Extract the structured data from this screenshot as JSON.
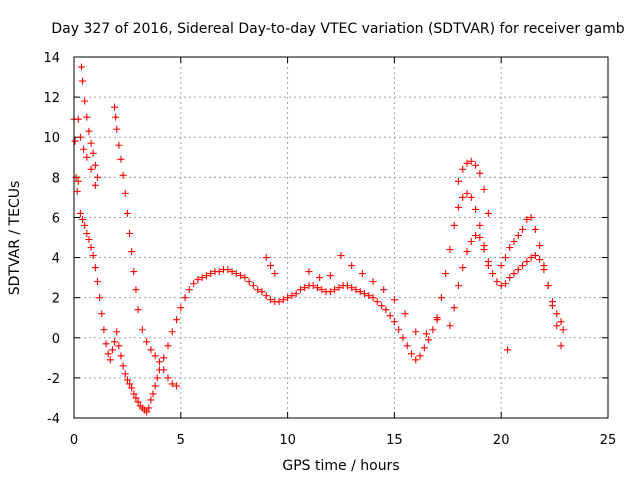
{
  "chart_data": {
    "type": "scatter",
    "title": "Day 327 of 2016, Sidereal Day-to-day VTEC variation (SDTVAR) for receiver gamb",
    "xlabel": "GPS time / hours",
    "ylabel": "SDTVAR / TECUs",
    "xlim": [
      0,
      25
    ],
    "ylim": [
      -4,
      14
    ],
    "xticks": [
      0,
      5,
      10,
      15,
      20,
      25
    ],
    "yticks": [
      -4,
      -2,
      0,
      2,
      4,
      6,
      8,
      10,
      12,
      14
    ],
    "grid": true,
    "marker": "plus",
    "color": "#ff0000",
    "series": [
      {
        "name": "SDTVAR",
        "x": [
          0.0,
          0.05,
          0.1,
          0.15,
          0.2,
          0.3,
          0.4,
          0.5,
          0.6,
          0.7,
          0.8,
          0.9,
          1.0,
          1.1,
          1.2,
          1.3,
          1.4,
          1.5,
          1.6,
          1.7,
          1.8,
          1.9,
          2.0,
          2.1,
          2.2,
          2.3,
          2.4,
          2.5,
          2.6,
          2.7,
          2.8,
          2.9,
          3.0,
          3.1,
          3.2,
          3.3,
          3.4,
          3.5,
          3.6,
          3.7,
          3.8,
          3.9,
          4.0,
          4.2,
          4.4,
          4.6,
          4.8,
          5.0,
          5.2,
          5.4,
          5.6,
          5.8,
          6.0,
          6.2,
          6.4,
          6.6,
          6.8,
          7.0,
          7.2,
          7.4,
          7.6,
          7.8,
          8.0,
          8.2,
          8.4,
          8.6,
          8.8,
          9.0,
          9.2,
          9.4,
          9.6,
          9.8,
          10.0,
          10.2,
          10.4,
          10.6,
          10.8,
          11.0,
          11.2,
          11.4,
          11.6,
          11.8,
          12.0,
          12.2,
          12.4,
          12.6,
          12.8,
          13.0,
          13.2,
          13.4,
          13.6,
          13.8,
          14.0,
          14.2,
          14.4,
          14.6,
          14.8,
          15.0,
          15.2,
          15.4,
          15.6,
          15.8,
          16.0,
          16.2,
          16.4,
          16.6,
          16.8,
          17.0,
          17.2,
          17.4,
          17.6,
          17.8,
          18.0,
          18.2,
          18.4,
          18.6,
          18.8,
          19.0,
          19.2,
          19.4,
          19.6,
          19.8,
          20.0,
          20.2,
          20.4,
          20.6,
          20.8,
          21.0,
          21.2,
          21.4,
          21.6,
          21.8,
          22.0,
          22.2,
          22.4,
          22.6,
          22.8,
          22.9,
          0.35,
          0.4,
          0.5,
          0.6,
          0.7,
          0.8,
          0.9,
          1.0,
          1.1,
          0.2,
          0.3,
          0.45,
          0.6,
          0.8,
          1.0,
          1.9,
          1.95,
          2.0,
          2.1,
          2.2,
          2.3,
          2.4,
          2.5,
          2.6,
          2.7,
          2.8,
          2.9,
          3.0,
          3.2,
          3.4,
          3.6,
          3.8,
          4.0,
          4.2,
          4.4,
          4.6,
          4.8,
          18.0,
          18.2,
          18.4,
          18.6,
          18.8,
          19.0,
          19.2,
          19.4,
          20.0,
          20.2,
          20.4,
          20.6,
          20.8,
          21.0,
          21.2,
          21.4,
          21.6,
          21.8,
          22.0,
          22.2,
          22.4,
          22.6,
          22.8,
          17.6,
          17.8,
          18.0,
          18.2,
          18.4,
          18.6,
          18.8,
          19.0,
          19.2,
          19.4,
          20.3,
          11.0,
          11.5,
          12.0,
          12.5,
          13.0,
          13.5,
          14.0,
          14.5,
          15.0,
          15.5,
          16.0,
          16.5,
          17.0,
          9.0,
          9.2,
          9.4
        ],
        "y": [
          10.9,
          9.8,
          8.0,
          7.3,
          7.8,
          6.2,
          5.9,
          5.6,
          5.2,
          4.9,
          4.5,
          4.1,
          3.5,
          2.8,
          2.0,
          1.2,
          0.4,
          -0.3,
          -0.8,
          -1.1,
          -0.6,
          -0.2,
          0.3,
          -0.4,
          -0.9,
          -1.4,
          -1.8,
          -2.1,
          -2.3,
          -2.5,
          -2.8,
          -3.0,
          -3.2,
          -3.4,
          -3.5,
          -3.6,
          -3.7,
          -3.5,
          -3.1,
          -2.8,
          -2.4,
          -2.0,
          -1.6,
          -1.0,
          -0.4,
          0.3,
          0.9,
          1.5,
          2.0,
          2.4,
          2.7,
          2.9,
          3.0,
          3.1,
          3.2,
          3.3,
          3.3,
          3.4,
          3.4,
          3.3,
          3.2,
          3.1,
          3.0,
          2.8,
          2.6,
          2.4,
          2.3,
          2.1,
          1.9,
          1.8,
          1.8,
          1.9,
          2.0,
          2.1,
          2.2,
          2.4,
          2.5,
          2.6,
          2.6,
          2.5,
          2.4,
          2.3,
          2.3,
          2.4,
          2.5,
          2.6,
          2.6,
          2.5,
          2.4,
          2.3,
          2.2,
          2.1,
          2.0,
          1.8,
          1.6,
          1.4,
          1.1,
          0.8,
          0.4,
          0.0,
          -0.4,
          -0.8,
          -1.1,
          -0.9,
          -0.5,
          -0.1,
          0.4,
          1.0,
          2.0,
          3.2,
          4.4,
          5.6,
          6.5,
          7.0,
          7.2,
          7.0,
          6.4,
          5.6,
          4.6,
          3.8,
          3.2,
          2.8,
          2.6,
          2.7,
          3.0,
          3.2,
          3.4,
          3.6,
          3.8,
          4.0,
          4.1,
          3.9,
          3.4,
          2.6,
          1.8,
          1.2,
          0.8,
          0.4,
          13.5,
          12.8,
          11.8,
          11.0,
          10.3,
          9.7,
          9.2,
          8.6,
          8.0,
          10.9,
          10.0,
          9.4,
          9.0,
          8.4,
          7.6,
          11.5,
          11.0,
          10.4,
          9.6,
          8.9,
          8.1,
          7.2,
          6.2,
          5.2,
          4.3,
          3.3,
          2.4,
          1.4,
          0.4,
          -0.2,
          -0.6,
          -0.9,
          -1.2,
          -1.6,
          -2.0,
          -2.3,
          -2.4,
          7.8,
          8.4,
          8.7,
          8.8,
          8.6,
          8.2,
          7.4,
          6.2,
          3.6,
          4.0,
          4.5,
          4.8,
          5.1,
          5.4,
          5.9,
          6.0,
          5.4,
          4.6,
          3.6,
          2.6,
          1.6,
          0.6,
          -0.4,
          0.6,
          1.5,
          2.6,
          3.5,
          4.3,
          4.8,
          5.1,
          5.0,
          4.4,
          3.6,
          -0.6,
          3.3,
          3.0,
          3.1,
          4.1,
          3.6,
          3.2,
          2.8,
          2.4,
          1.9,
          1.2,
          0.3,
          0.2,
          0.9,
          4.0,
          3.6,
          3.2
        ]
      }
    ]
  }
}
